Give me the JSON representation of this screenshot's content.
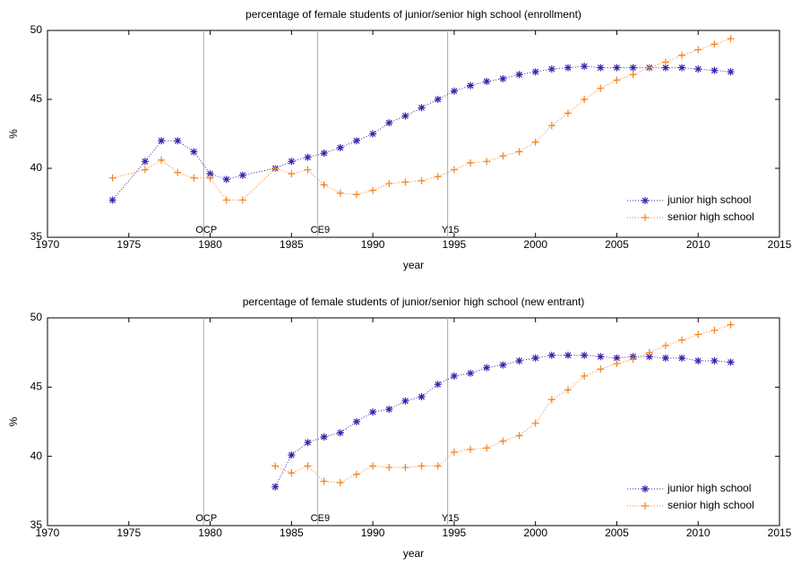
{
  "chart_data": [
    {
      "type": "line",
      "title": "percentage of female students of junior/senior high school (enrollment)",
      "xlabel": "year",
      "ylabel": "%",
      "x": [
        1974,
        1976,
        1977,
        1978,
        1979,
        1980,
        1981,
        1982,
        1984,
        1985,
        1986,
        1987,
        1988,
        1989,
        1990,
        1991,
        1992,
        1993,
        1994,
        1995,
        1996,
        1997,
        1998,
        1999,
        2000,
        2001,
        2002,
        2003,
        2004,
        2005,
        2006,
        2007,
        2008,
        2009,
        2010,
        2011,
        2012
      ],
      "series": [
        {
          "name": "junior high school",
          "color": "#3b1fae",
          "marker": "star",
          "values": [
            37.7,
            40.5,
            42.0,
            42.0,
            41.2,
            39.6,
            39.2,
            39.5,
            40.0,
            40.5,
            40.8,
            41.1,
            41.5,
            42.0,
            42.5,
            43.3,
            43.8,
            44.4,
            45.0,
            45.6,
            46.0,
            46.3,
            46.5,
            46.8,
            47.0,
            47.2,
            47.3,
            47.4,
            47.3,
            47.3,
            47.3,
            47.3,
            47.3,
            47.3,
            47.2,
            47.1,
            47.0
          ]
        },
        {
          "name": "senior high school",
          "color": "#f5821f",
          "marker": "plus",
          "values": [
            39.3,
            39.9,
            40.6,
            39.7,
            39.3,
            39.3,
            37.7,
            37.7,
            40.0,
            39.6,
            39.9,
            38.8,
            38.2,
            38.1,
            38.4,
            38.9,
            39.0,
            39.1,
            39.4,
            39.9,
            40.4,
            40.5,
            40.9,
            41.2,
            41.9,
            43.1,
            44.0,
            45.0,
            45.8,
            46.4,
            46.8,
            47.3,
            47.7,
            48.2,
            48.6,
            49.0,
            49.4
          ]
        }
      ],
      "vlines": [
        {
          "x": 1979.6,
          "label": "OCP"
        },
        {
          "x": 1986.6,
          "label": "CE9"
        },
        {
          "x": 1994.6,
          "label": "Y15"
        }
      ],
      "xlim": [
        1970,
        2015
      ],
      "xticks": [
        1970,
        1975,
        1980,
        1985,
        1990,
        1995,
        2000,
        2005,
        2010,
        2015
      ],
      "ylim": [
        35,
        50
      ],
      "yticks": [
        35,
        40,
        45,
        50
      ],
      "legend": "lower right"
    },
    {
      "type": "line",
      "title": "percentage of female students of junior/senior high school (new entrant)",
      "xlabel": "year",
      "ylabel": "%",
      "x": [
        1984,
        1985,
        1986,
        1987,
        1988,
        1989,
        1990,
        1991,
        1992,
        1993,
        1994,
        1995,
        1996,
        1997,
        1998,
        1999,
        2000,
        2001,
        2002,
        2003,
        2004,
        2005,
        2006,
        2007,
        2008,
        2009,
        2010,
        2011,
        2012
      ],
      "series": [
        {
          "name": "junior high school",
          "color": "#3b1fae",
          "marker": "star",
          "values": [
            37.8,
            40.1,
            41.0,
            41.4,
            41.7,
            42.5,
            43.2,
            43.4,
            44.0,
            44.3,
            45.2,
            45.8,
            46.0,
            46.4,
            46.6,
            46.9,
            47.1,
            47.3,
            47.3,
            47.3,
            47.2,
            47.1,
            47.2,
            47.2,
            47.1,
            47.1,
            46.9,
            46.9,
            46.8
          ]
        },
        {
          "name": "senior high school",
          "color": "#f5821f",
          "marker": "plus",
          "values": [
            39.3,
            38.8,
            39.3,
            38.2,
            38.1,
            38.7,
            39.3,
            39.2,
            39.2,
            39.3,
            39.3,
            40.3,
            40.5,
            40.6,
            41.1,
            41.5,
            42.4,
            44.1,
            44.8,
            45.8,
            46.3,
            46.7,
            47.0,
            47.5,
            48.0,
            48.4,
            48.8,
            49.1,
            49.5
          ]
        }
      ],
      "vlines": [
        {
          "x": 1979.6,
          "label": "OCP"
        },
        {
          "x": 1986.6,
          "label": "CE9"
        },
        {
          "x": 1994.6,
          "label": "Y15"
        }
      ],
      "xlim": [
        1970,
        2015
      ],
      "xticks": [
        1970,
        1975,
        1980,
        1985,
        1990,
        1995,
        2000,
        2005,
        2010,
        2015
      ],
      "ylim": [
        35,
        50
      ],
      "yticks": [
        35,
        40,
        45,
        50
      ],
      "legend": "lower right"
    }
  ]
}
